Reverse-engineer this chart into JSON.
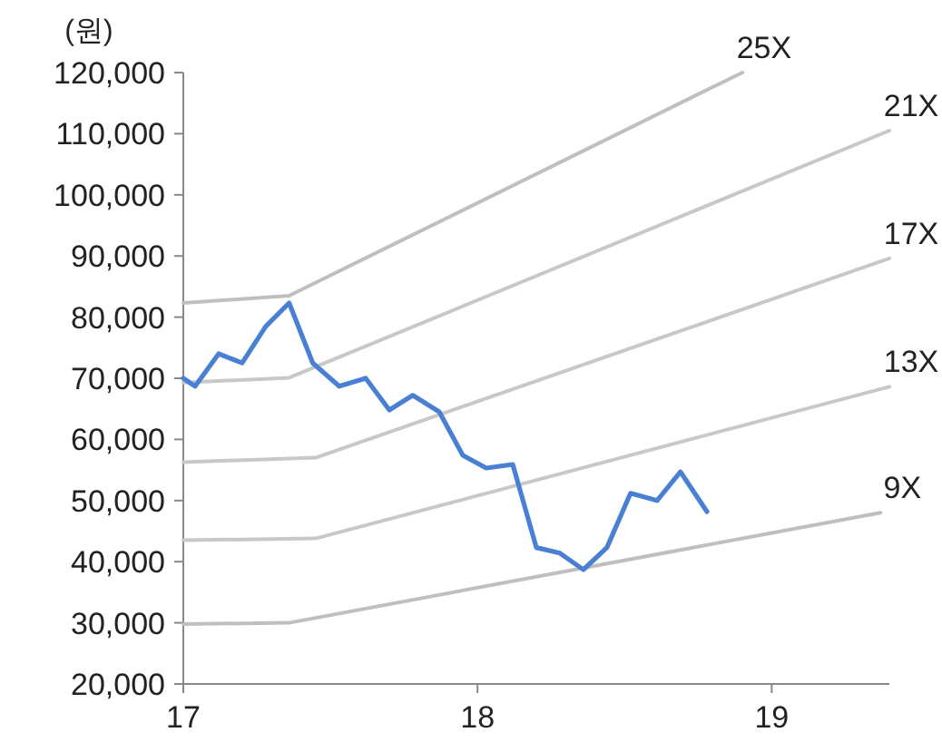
{
  "chart_data": {
    "type": "line",
    "ylabel": "(원)",
    "xlim": [
      17,
      19.4
    ],
    "ylim": [
      20000,
      120000
    ],
    "xticks": [
      17,
      18,
      19
    ],
    "yticks": [
      {
        "value": 20000,
        "label": "20,000"
      },
      {
        "value": 30000,
        "label": "30,000"
      },
      {
        "value": 40000,
        "label": "40,000"
      },
      {
        "value": 50000,
        "label": "50,000"
      },
      {
        "value": 60000,
        "label": "60,000"
      },
      {
        "value": 70000,
        "label": "70,000"
      },
      {
        "value": 80000,
        "label": "80,000"
      },
      {
        "value": 90000,
        "label": "90,000"
      },
      {
        "value": 100000,
        "label": "100,000"
      },
      {
        "value": 110000,
        "label": "110,000"
      },
      {
        "value": 120000,
        "label": "120,000"
      }
    ],
    "series": [
      {
        "name": "25X",
        "color": "#bfbfbf",
        "x": [
          17,
          17.36,
          18.9
        ],
        "values": [
          82300,
          83500,
          120000
        ]
      },
      {
        "name": "21X",
        "color": "#c8c8c8",
        "x": [
          17,
          17.36,
          19.4
        ],
        "values": [
          69300,
          70100,
          110500
        ]
      },
      {
        "name": "17X",
        "color": "#c8c8c8",
        "x": [
          17,
          17.45,
          19.4
        ],
        "values": [
          56300,
          57000,
          89600
        ]
      },
      {
        "name": "13X",
        "color": "#c8c8c8",
        "x": [
          17,
          17.45,
          19.4
        ],
        "values": [
          43500,
          43800,
          68600
        ]
      },
      {
        "name": "9X",
        "color": "#bfbfbf",
        "x": [
          17,
          17.36,
          19.37
        ],
        "values": [
          29800,
          30000,
          48000
        ]
      },
      {
        "color": "#4a80d4",
        "x": [
          17,
          17.04,
          17.12,
          17.2,
          17.28,
          17.36,
          17.44,
          17.53,
          17.62,
          17.7,
          17.78,
          17.87,
          17.95,
          18.03,
          18.12,
          18.2,
          18.28,
          18.36,
          18.44,
          18.52,
          18.61,
          18.69,
          18.78
        ],
        "values": [
          70000,
          68700,
          74000,
          72500,
          78500,
          82300,
          72500,
          68700,
          70000,
          64800,
          67200,
          64500,
          57400,
          55300,
          55900,
          42300,
          41400,
          38700,
          42300,
          51200,
          50000,
          54700,
          48200
        ]
      }
    ]
  }
}
